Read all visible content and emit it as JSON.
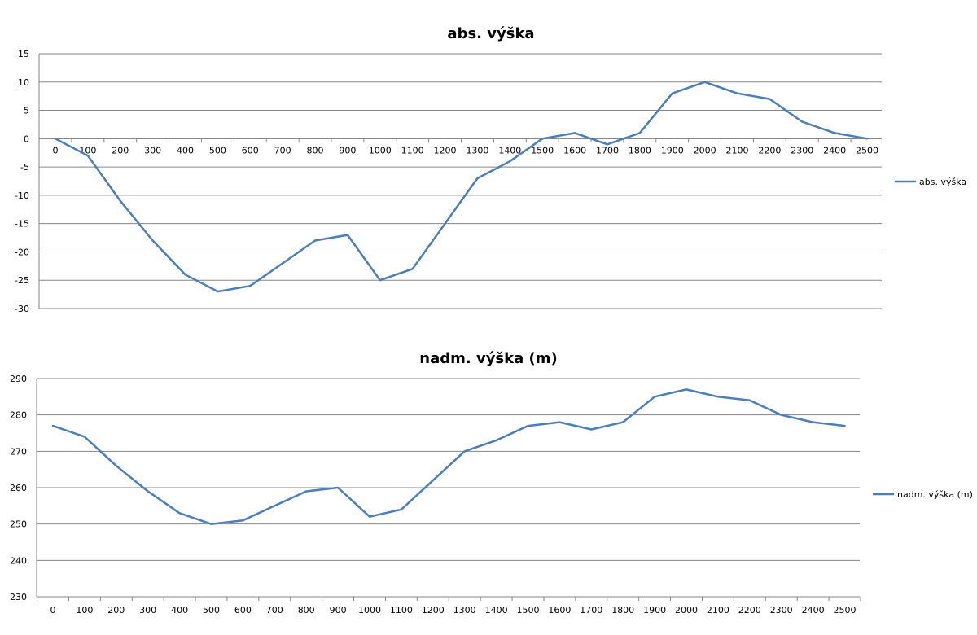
{
  "chart_data": [
    {
      "type": "line",
      "title": "abs. výška",
      "categories": [
        "0",
        "100",
        "200",
        "300",
        "400",
        "500",
        "600",
        "700",
        "800",
        "900",
        "1000",
        "1100",
        "1200",
        "1300",
        "1400",
        "1500",
        "1600",
        "1700",
        "1800",
        "1900",
        "2000",
        "2100",
        "2200",
        "2300",
        "2400",
        "2500"
      ],
      "series": [
        {
          "name": "abs. výška",
          "color": "#4a7ebb",
          "values": [
            0,
            -3,
            -11,
            -18,
            -24,
            -27,
            -26,
            -22,
            -18,
            -17,
            -25,
            -23,
            -15,
            -7,
            -4,
            0,
            1,
            -1,
            1,
            8,
            10,
            8,
            7,
            3,
            1,
            0
          ]
        }
      ],
      "ylim": [
        -30,
        15
      ],
      "yticks": [
        15,
        10,
        5,
        0,
        -5,
        -10,
        -15,
        -20,
        -25,
        -30
      ],
      "grid": true,
      "legend": "right",
      "x_axis_position": "at-zero"
    },
    {
      "type": "line",
      "title": "nadm. výška (m)",
      "categories": [
        "0",
        "100",
        "200",
        "300",
        "400",
        "500",
        "600",
        "700",
        "800",
        "900",
        "1000",
        "1100",
        "1200",
        "1300",
        "1400",
        "1500",
        "1600",
        "1700",
        "1800",
        "1900",
        "2000",
        "2100",
        "2200",
        "2300",
        "2400",
        "2500"
      ],
      "series": [
        {
          "name": "nadm. výška (m)",
          "color": "#4a7ebb",
          "values": [
            277,
            274,
            266,
            259,
            253,
            250,
            251,
            255,
            259,
            260,
            252,
            254,
            262,
            270,
            273,
            277,
            278,
            276,
            278,
            285,
            287,
            285,
            284,
            280,
            278,
            277
          ]
        }
      ],
      "ylim": [
        230,
        290
      ],
      "yticks": [
        290,
        280,
        270,
        260,
        250,
        240,
        230
      ],
      "grid": true,
      "legend": "right",
      "x_axis_position": "bottom"
    }
  ]
}
